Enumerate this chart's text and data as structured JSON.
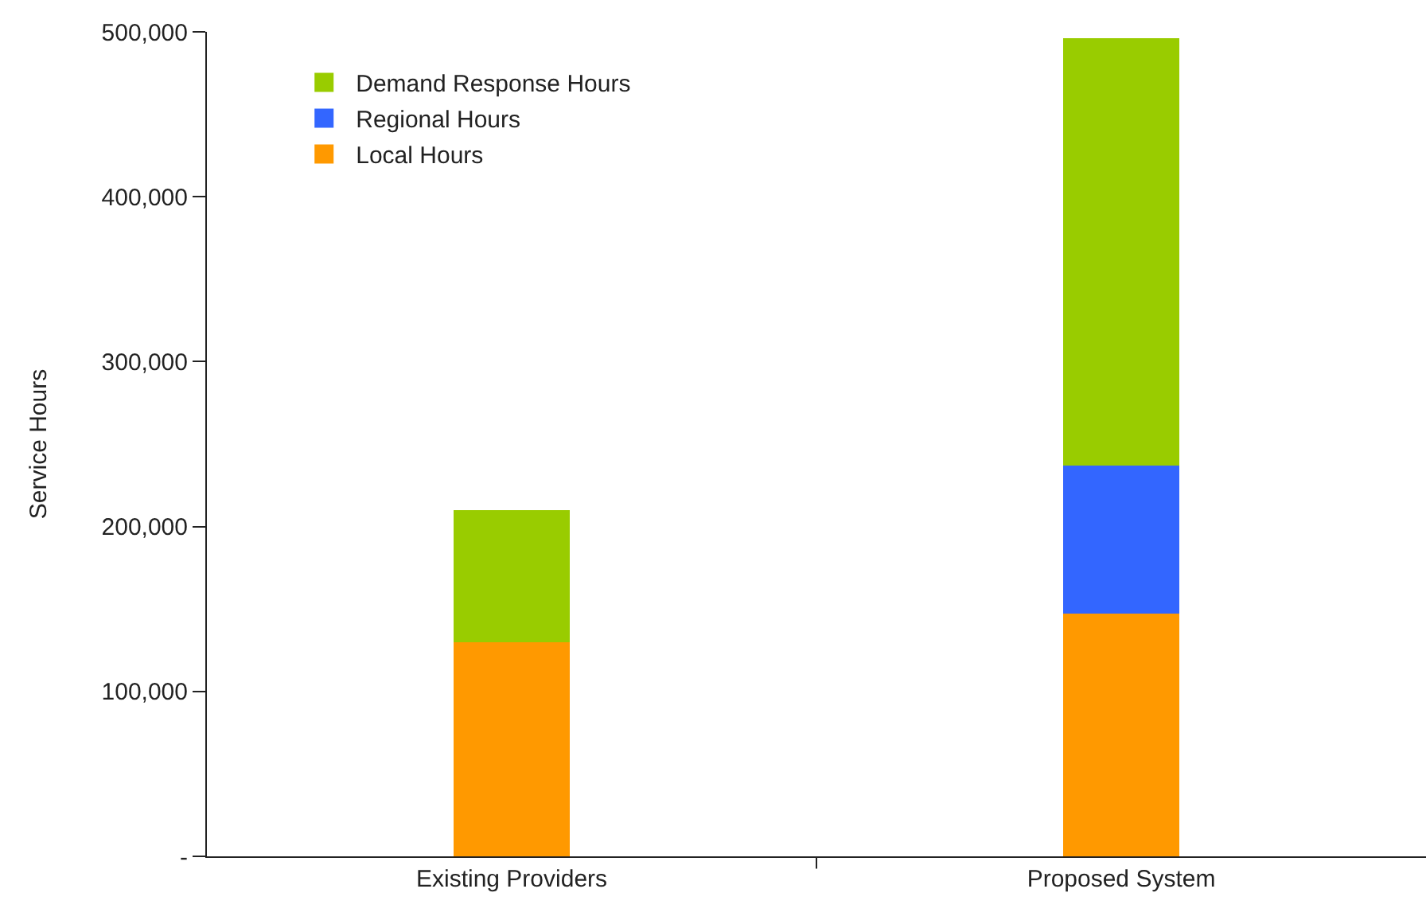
{
  "chart_data": {
    "type": "bar",
    "stacked": true,
    "ylabel": "Service Hours",
    "categories": [
      "Existing Providers",
      "Proposed System"
    ],
    "series": [
      {
        "name": "Local Hours",
        "color": "#ff9900",
        "values": [
          130000,
          147000
        ]
      },
      {
        "name": "Regional Hours",
        "color": "#3366ff",
        "values": [
          0,
          90000
        ]
      },
      {
        "name": "Demand Response Hours",
        "color": "#99cc00",
        "values": [
          80000,
          259000
        ]
      }
    ],
    "ylim": [
      0,
      500000
    ],
    "yticks": [
      {
        "value": 0,
        "label": "-"
      },
      {
        "value": 100000,
        "label": "100,000"
      },
      {
        "value": 200000,
        "label": "200,000"
      },
      {
        "value": 300000,
        "label": "300,000"
      },
      {
        "value": 400000,
        "label": "400,000"
      },
      {
        "value": 500000,
        "label": "500,000"
      }
    ],
    "legend": "top left"
  }
}
